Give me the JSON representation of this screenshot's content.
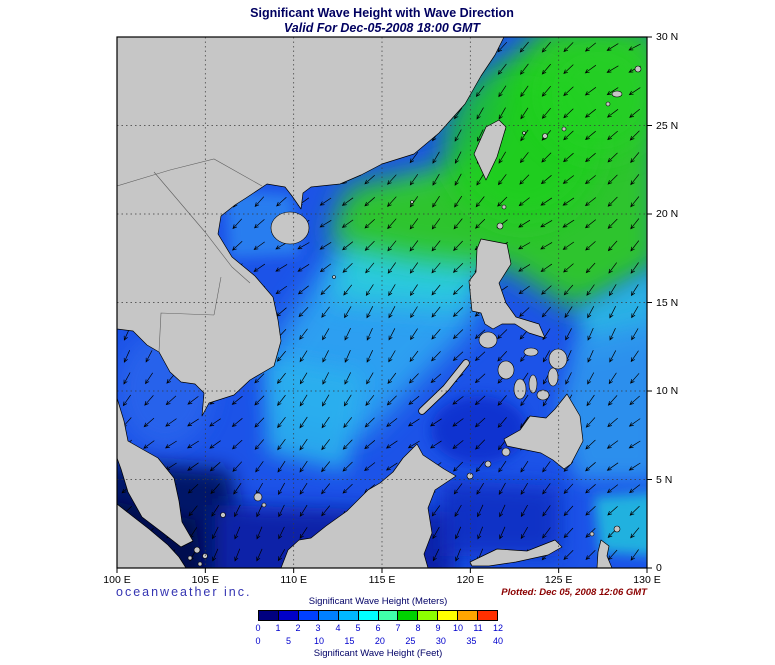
{
  "title": "Significant Wave Height with Wave Direction",
  "subtitle": "Valid For Dec-05-2008 18:00 GMT",
  "map": {
    "x_ticks": [
      "100 E",
      "105 E",
      "110 E",
      "115 E",
      "120 E",
      "125 E",
      "130 E"
    ],
    "y_ticks": [
      "30 N",
      "25 N",
      "20 N",
      "15 N",
      "10 N",
      "5 N",
      "0"
    ]
  },
  "credit": "oceanweather inc.",
  "plotted": "Plotted: Dec 05, 2008 12:06 GMT",
  "legend": {
    "meters_label": "Significant Wave Height (Meters)",
    "feet_label": "Significant Wave Height (Feet)",
    "meters_ticks": [
      "0",
      "1",
      "2",
      "3",
      "4",
      "5",
      "6",
      "7",
      "8",
      "9",
      "10",
      "11",
      "12"
    ],
    "feet_ticks": [
      "0",
      "5",
      "10",
      "15",
      "20",
      "25",
      "30",
      "35",
      "40"
    ],
    "colors": [
      "#000080",
      "#0000c8",
      "#0040ff",
      "#0080ff",
      "#00b8ff",
      "#00ffff",
      "#40ffaa",
      "#00d200",
      "#8cff00",
      "#ffff00",
      "#ffa500",
      "#ff3000"
    ]
  }
}
